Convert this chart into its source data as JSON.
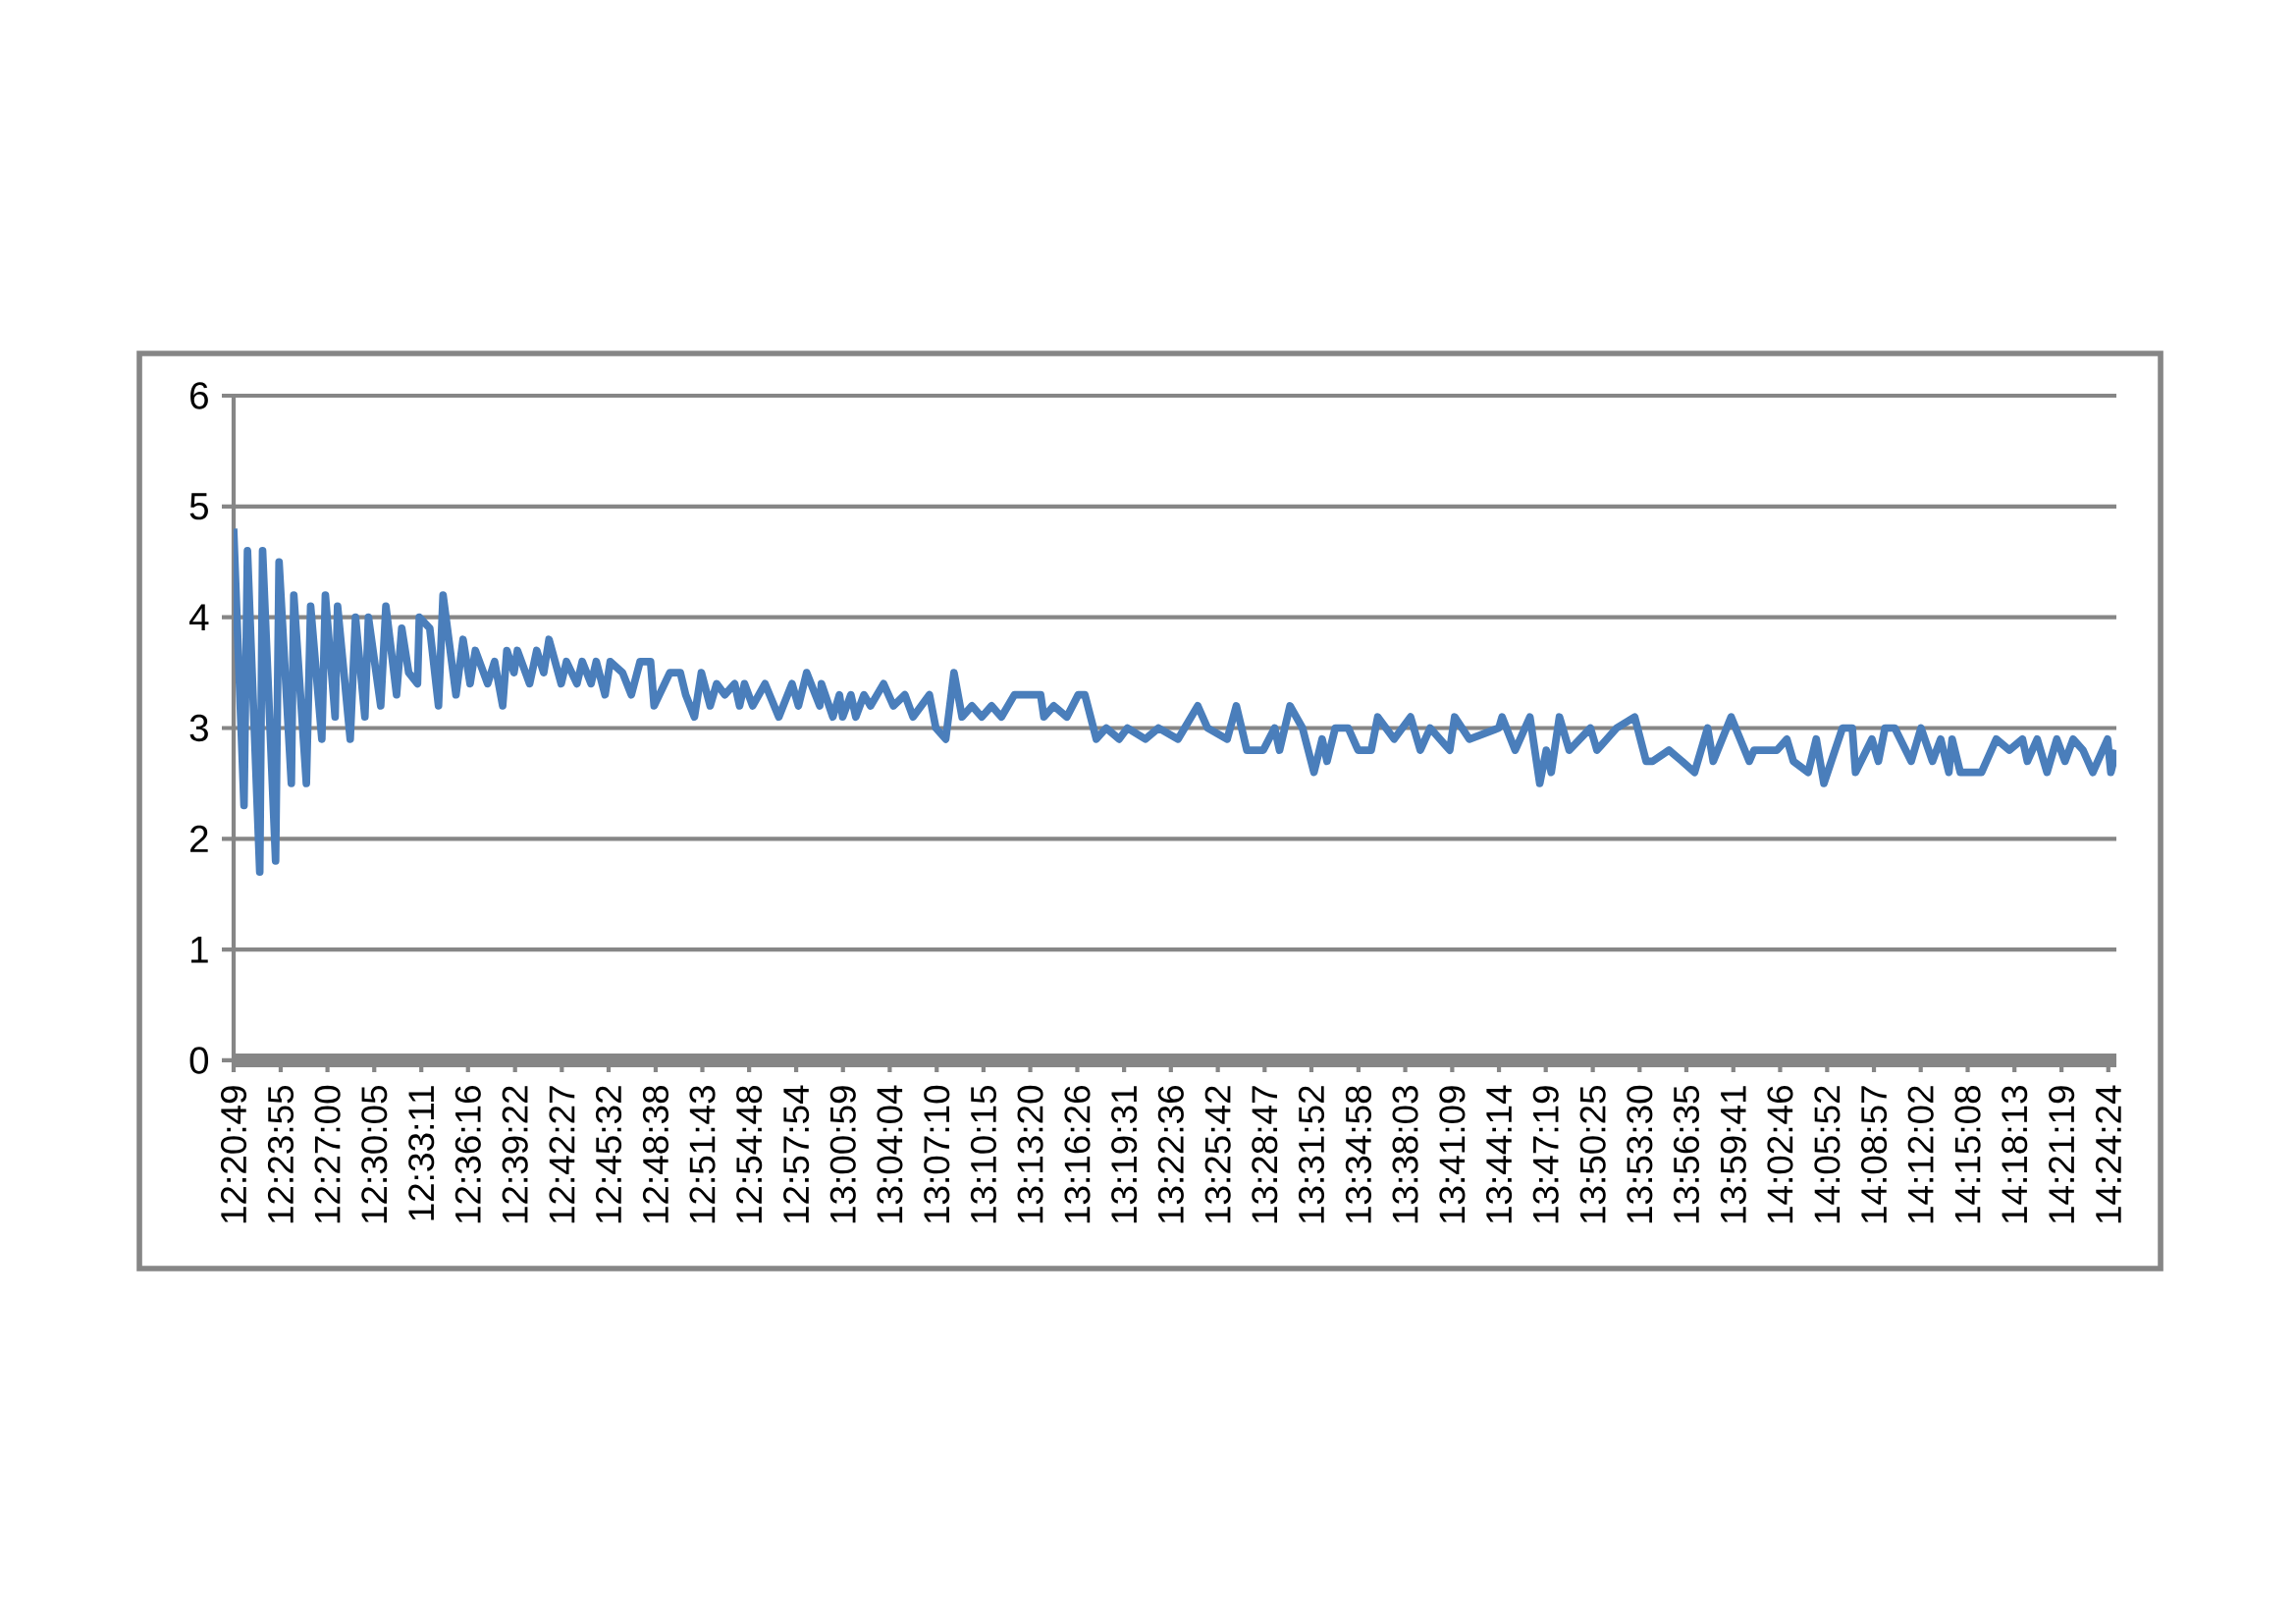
{
  "chart_data": {
    "type": "line",
    "color": "#4a7ebb",
    "grid": "y",
    "ylim": [
      0,
      6
    ],
    "yticks": [
      0,
      1,
      2,
      3,
      4,
      5,
      6
    ],
    "xlim": [
      12.3469,
      14.4156
    ],
    "xticks": [
      {
        "value": 12.3469,
        "label": "12:20:49"
      },
      {
        "value": 12.3986,
        "label": "12:23:55"
      },
      {
        "value": 12.45,
        "label": "12:27:00"
      },
      {
        "value": 12.5014,
        "label": "12:30:05"
      },
      {
        "value": 12.5531,
        "label": "12:33:11"
      },
      {
        "value": 12.6044,
        "label": "12:36:16"
      },
      {
        "value": 12.6561,
        "label": "12:39:22"
      },
      {
        "value": 12.7075,
        "label": "12:42:27"
      },
      {
        "value": 12.7589,
        "label": "12:45:32"
      },
      {
        "value": 12.8106,
        "label": "12:48:38"
      },
      {
        "value": 12.8619,
        "label": "12:51:43"
      },
      {
        "value": 12.9133,
        "label": "12:54:48"
      },
      {
        "value": 12.965,
        "label": "12:57:54"
      },
      {
        "value": 13.0164,
        "label": "13:00:59"
      },
      {
        "value": 13.0678,
        "label": "13:04:04"
      },
      {
        "value": 13.1194,
        "label": "13:07:10"
      },
      {
        "value": 13.1708,
        "label": "13:10:15"
      },
      {
        "value": 13.2222,
        "label": "13:13:20"
      },
      {
        "value": 13.2739,
        "label": "13:16:26"
      },
      {
        "value": 13.3253,
        "label": "13:19:31"
      },
      {
        "value": 13.3767,
        "label": "13:22:36"
      },
      {
        "value": 13.4283,
        "label": "13:25:42"
      },
      {
        "value": 13.4797,
        "label": "13:28:47"
      },
      {
        "value": 13.5311,
        "label": "13:31:52"
      },
      {
        "value": 13.5828,
        "label": "13:34:58"
      },
      {
        "value": 13.6342,
        "label": "13:38:03"
      },
      {
        "value": 13.6858,
        "label": "13:41:09"
      },
      {
        "value": 13.7372,
        "label": "13:44:14"
      },
      {
        "value": 13.7886,
        "label": "13:47:19"
      },
      {
        "value": 13.8403,
        "label": "13:50:25"
      },
      {
        "value": 13.8917,
        "label": "13:53:30"
      },
      {
        "value": 13.9431,
        "label": "13:56:35"
      },
      {
        "value": 13.9947,
        "label": "13:59:41"
      },
      {
        "value": 14.0461,
        "label": "14:02:46"
      },
      {
        "value": 14.0978,
        "label": "14:05:52"
      },
      {
        "value": 14.1492,
        "label": "14:08:57"
      },
      {
        "value": 14.2006,
        "label": "14:12:02"
      },
      {
        "value": 14.2522,
        "label": "14:15:08"
      },
      {
        "value": 14.3036,
        "label": "14:18:13"
      },
      {
        "value": 14.3553,
        "label": "14:21:19"
      },
      {
        "value": 14.4067,
        "label": "14:24:24"
      }
    ],
    "x": [
      12.3469,
      12.3583,
      12.3621,
      12.3756,
      12.3787,
      12.393,
      12.3968,
      12.4103,
      12.413,
      12.4268,
      12.4315,
      12.4438,
      12.4477,
      12.4584,
      12.4611,
      12.475,
      12.4808,
      12.4911,
      12.495,
      12.5085,
      12.5142,
      12.5259,
      12.5316,
      12.5393,
      12.5489,
      12.5509,
      12.5624,
      12.572,
      12.577,
      12.5912,
      12.599,
      12.6067,
      12.6125,
      12.626,
      12.6336,
      12.6425,
      12.6471,
      12.6549,
      12.6587,
      12.6721,
      12.6799,
      12.6876,
      12.6934,
      12.7068,
      12.7126,
      12.7241,
      12.7299,
      12.7396,
      12.7453,
      12.755,
      12.7607,
      12.7742,
      12.7838,
      12.7935,
      12.805,
      12.8089,
      12.8262,
      12.8377,
      12.8436,
      12.8532,
      12.8608,
      12.8705,
      12.8776,
      12.8866,
      12.8974,
      12.9028,
      12.9082,
      12.9172,
      12.9308,
      12.9459,
      12.9604,
      12.9675,
      12.9765,
      12.9909,
      12.9927,
      13.0053,
      13.0125,
      13.0161,
      13.0251,
      13.0305,
      13.0395,
      13.0467,
      13.061,
      13.0718,
      13.0844,
      13.0934,
      13.1114,
      13.1185,
      13.1293,
      13.1384,
      13.1473,
      13.1581,
      13.1689,
      13.1797,
      13.1905,
      13.2048,
      13.2336,
      13.2372,
      13.248,
      13.2624,
      13.2749,
      13.2822,
      13.2948,
      13.3056,
      13.3199,
      13.3289,
      13.3487,
      13.3631,
      13.3846,
      13.4062,
      13.417,
      13.4386,
      13.4486,
      13.4602,
      13.4782,
      13.4907,
      13.4961,
      13.5076,
      13.5213,
      13.5339,
      13.5429,
      13.5483,
      13.5573,
      13.5716,
      13.5824,
      13.5968,
      13.604,
      13.622,
      13.64,
      13.6508,
      13.6616,
      13.6831,
      13.6885,
      13.7047,
      13.7371,
      13.7406,
      13.755,
      13.7712,
      13.782,
      13.7892,
      13.7946,
      13.8036,
      13.8144,
      13.8377,
      13.8449,
      13.8665,
      13.8863,
      13.8989,
      13.906,
      13.924,
      13.9384,
      13.9521,
      13.9664,
      13.9726,
      13.9923,
      14.0122,
      14.0175,
      14.0427,
      14.0535,
      14.0607,
      14.0769,
      14.0858,
      14.0942,
      14.1146,
      14.1254,
      14.129,
      14.147,
      14.1541,
      14.1613,
      14.1721,
      14.1901,
      14.2009,
      14.2135,
      14.2225,
      14.2315,
      14.2351,
      14.2441,
      14.2674,
      14.2836,
      14.298,
      14.3124,
      14.3178,
      14.3286,
      14.3394,
      14.3501,
      14.3591,
      14.3681,
      14.3789,
      14.3897,
      14.4059,
      14.4095,
      14.4156
    ],
    "values": [
      4.8,
      2.3,
      4.6,
      1.7,
      4.6,
      1.8,
      4.5,
      2.5,
      4.2,
      2.5,
      4.1,
      2.9,
      4.2,
      3.1,
      4.1,
      2.9,
      4.0,
      3.1,
      4.0,
      3.2,
      4.1,
      3.3,
      3.9,
      3.5,
      3.4,
      4.0,
      3.9,
      3.2,
      4.2,
      3.3,
      3.8,
      3.4,
      3.7,
      3.4,
      3.6,
      3.2,
      3.7,
      3.5,
      3.7,
      3.4,
      3.7,
      3.5,
      3.8,
      3.4,
      3.6,
      3.4,
      3.6,
      3.4,
      3.6,
      3.3,
      3.6,
      3.5,
      3.3,
      3.6,
      3.6,
      3.2,
      3.5,
      3.5,
      3.3,
      3.1,
      3.5,
      3.2,
      3.4,
      3.3,
      3.4,
      3.2,
      3.4,
      3.2,
      3.4,
      3.1,
      3.4,
      3.2,
      3.5,
      3.2,
      3.4,
      3.1,
      3.3,
      3.1,
      3.3,
      3.1,
      3.3,
      3.2,
      3.4,
      3.2,
      3.3,
      3.1,
      3.3,
      3.0,
      2.9,
      3.5,
      3.1,
      3.2,
      3.1,
      3.2,
      3.1,
      3.3,
      3.3,
      3.1,
      3.2,
      3.1,
      3.3,
      3.3,
      2.9,
      3.0,
      2.9,
      3.0,
      2.9,
      3.0,
      2.9,
      3.2,
      3.0,
      2.9,
      3.2,
      2.8,
      2.8,
      3.0,
      2.8,
      3.2,
      3.0,
      2.6,
      2.9,
      2.7,
      3.0,
      3.0,
      2.8,
      2.8,
      3.1,
      2.9,
      3.1,
      2.8,
      3.0,
      2.8,
      3.1,
      2.9,
      3.0,
      3.1,
      2.8,
      3.1,
      2.5,
      2.8,
      2.6,
      3.1,
      2.8,
      3.0,
      2.8,
      3.0,
      3.1,
      2.7,
      2.7,
      2.8,
      2.7,
      2.6,
      3.0,
      2.7,
      3.1,
      2.7,
      2.8,
      2.8,
      2.9,
      2.7,
      2.6,
      2.9,
      2.5,
      3.0,
      3.0,
      2.6,
      2.9,
      2.7,
      3.0,
      3.0,
      2.7,
      3.0,
      2.7,
      2.9,
      2.6,
      2.9,
      2.6,
      2.6,
      2.9,
      2.8,
      2.9,
      2.7,
      2.9,
      2.6,
      2.9,
      2.7,
      2.9,
      2.8,
      2.6,
      2.9,
      2.6,
      2.8
    ]
  }
}
